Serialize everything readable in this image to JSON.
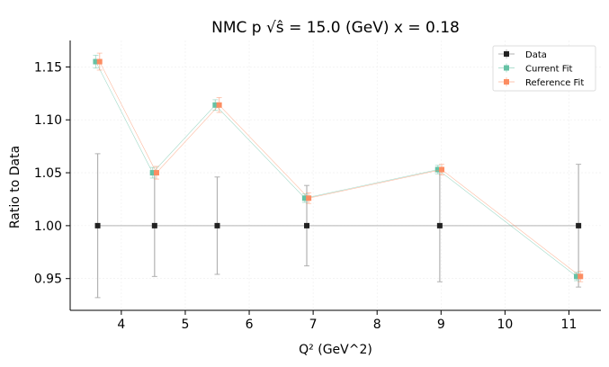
{
  "chart_data": {
    "type": "scatter",
    "title": "NMC p √ŝ = 15.0 (GeV) x = 0.18",
    "xlabel": "Q² (GeV^2)",
    "ylabel": "Ratio to Data",
    "xlim": [
      3.2,
      11.5
    ],
    "ylim": [
      0.92,
      1.175
    ],
    "xticks": [
      4,
      5,
      6,
      7,
      8,
      9,
      10,
      11
    ],
    "yticks": [
      0.95,
      1.0,
      1.05,
      1.1,
      1.15
    ],
    "ytick_labels": [
      "0.95",
      "1.00",
      "1.05",
      "1.10",
      "1.15"
    ],
    "grid": true,
    "legend_position": "top-right",
    "series": [
      {
        "name": "Data",
        "color": "#222222",
        "x": [
          3.63,
          4.52,
          5.5,
          6.9,
          8.98,
          11.15
        ],
        "y": [
          1.0,
          1.0,
          1.0,
          1.0,
          1.0,
          1.0
        ],
        "err": [
          0.068,
          0.048,
          0.046,
          0.038,
          0.053,
          0.058
        ]
      },
      {
        "name": "Current Fit",
        "color": "#66c2a5",
        "x": [
          3.6,
          4.49,
          5.47,
          6.87,
          8.95,
          11.12
        ],
        "y": [
          1.155,
          1.05,
          1.114,
          1.026,
          1.053,
          0.952
        ],
        "err": [
          0.006,
          0.005,
          0.005,
          0.004,
          0.004,
          0.004
        ]
      },
      {
        "name": "Reference Fit",
        "color": "#fc8d62",
        "x": [
          3.66,
          4.55,
          5.53,
          6.93,
          9.01,
          11.18
        ],
        "y": [
          1.155,
          1.05,
          1.114,
          1.026,
          1.053,
          0.952
        ],
        "err": [
          0.008,
          0.006,
          0.007,
          0.005,
          0.005,
          0.005
        ]
      }
    ]
  }
}
